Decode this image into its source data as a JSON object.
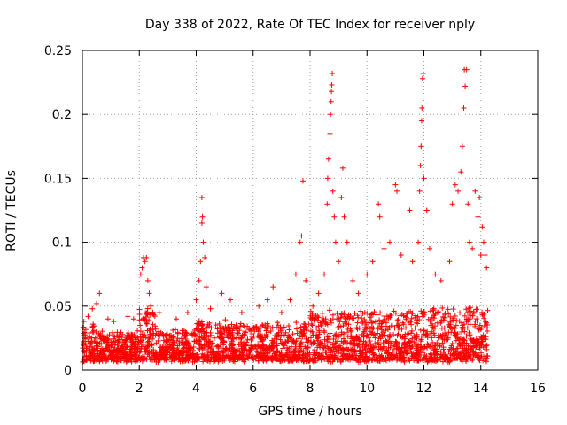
{
  "chart_data": {
    "type": "scatter",
    "title": "Day 338 of 2022, Rate Of TEC Index for receiver nply",
    "xlabel": "GPS time / hours",
    "ylabel": "ROTI / TECUs",
    "xlim": [
      0,
      16
    ],
    "ylim": [
      0,
      0.25
    ],
    "xticks": [
      0,
      2,
      4,
      6,
      8,
      10,
      12,
      14,
      16
    ],
    "yticks": [
      0,
      0.05,
      0.1,
      0.15,
      0.2,
      0.25
    ],
    "xtick_labels": [
      "0",
      "2",
      "4",
      "6",
      "8",
      "10",
      "12",
      "14",
      "16"
    ],
    "ytick_labels": [
      "0",
      "0.05",
      "0.1",
      "0.15",
      "0.2",
      "0.25"
    ],
    "grid": true,
    "marker": "+",
    "color": "#ff0000",
    "data_range_x": [
      0,
      14.25
    ],
    "series": [
      {
        "name": "ROTI",
        "points": [
          [
            0.05,
            0.038
          ],
          [
            0.2,
            0.042
          ],
          [
            0.35,
            0.048
          ],
          [
            0.5,
            0.052
          ],
          [
            0.6,
            0.06
          ],
          [
            0.9,
            0.04
          ],
          [
            1.1,
            0.038
          ],
          [
            1.6,
            0.042
          ],
          [
            1.8,
            0.04
          ],
          [
            2.05,
            0.075
          ],
          [
            2.1,
            0.08
          ],
          [
            2.15,
            0.088
          ],
          [
            2.2,
            0.085
          ],
          [
            2.25,
            0.088
          ],
          [
            2.3,
            0.07
          ],
          [
            2.35,
            0.06
          ],
          [
            2.4,
            0.05
          ],
          [
            2.7,
            0.045
          ],
          [
            3.3,
            0.04
          ],
          [
            3.7,
            0.045
          ],
          [
            4.0,
            0.055
          ],
          [
            4.1,
            0.07
          ],
          [
            4.15,
            0.085
          ],
          [
            4.2,
            0.115
          ],
          [
            4.22,
            0.12
          ],
          [
            4.2,
            0.135
          ],
          [
            4.25,
            0.1
          ],
          [
            4.3,
            0.088
          ],
          [
            4.35,
            0.065
          ],
          [
            4.5,
            0.048
          ],
          [
            4.9,
            0.06
          ],
          [
            5.2,
            0.055
          ],
          [
            5.6,
            0.045
          ],
          [
            6.2,
            0.05
          ],
          [
            6.5,
            0.055
          ],
          [
            6.7,
            0.065
          ],
          [
            7.0,
            0.045
          ],
          [
            7.3,
            0.055
          ],
          [
            7.5,
            0.075
          ],
          [
            7.65,
            0.1
          ],
          [
            7.7,
            0.105
          ],
          [
            7.75,
            0.148
          ],
          [
            7.85,
            0.07
          ],
          [
            8.1,
            0.05
          ],
          [
            8.3,
            0.06
          ],
          [
            8.5,
            0.075
          ],
          [
            8.6,
            0.13
          ],
          [
            8.62,
            0.15
          ],
          [
            8.65,
            0.165
          ],
          [
            8.7,
            0.185
          ],
          [
            8.72,
            0.2
          ],
          [
            8.74,
            0.21
          ],
          [
            8.75,
            0.218
          ],
          [
            8.76,
            0.223
          ],
          [
            8.78,
            0.232
          ],
          [
            8.8,
            0.14
          ],
          [
            8.85,
            0.12
          ],
          [
            8.9,
            0.1
          ],
          [
            9.0,
            0.085
          ],
          [
            9.1,
            0.135
          ],
          [
            9.15,
            0.158
          ],
          [
            9.2,
            0.12
          ],
          [
            9.3,
            0.1
          ],
          [
            9.5,
            0.07
          ],
          [
            9.7,
            0.06
          ],
          [
            10.0,
            0.075
          ],
          [
            10.2,
            0.085
          ],
          [
            10.4,
            0.13
          ],
          [
            10.45,
            0.12
          ],
          [
            10.6,
            0.095
          ],
          [
            10.8,
            0.1
          ],
          [
            11.0,
            0.145
          ],
          [
            11.05,
            0.14
          ],
          [
            11.2,
            0.09
          ],
          [
            11.5,
            0.125
          ],
          [
            11.6,
            0.085
          ],
          [
            11.8,
            0.1
          ],
          [
            11.85,
            0.14
          ],
          [
            11.88,
            0.16
          ],
          [
            11.9,
            0.175
          ],
          [
            11.92,
            0.195
          ],
          [
            11.93,
            0.205
          ],
          [
            11.95,
            0.228
          ],
          [
            11.97,
            0.232
          ],
          [
            12.0,
            0.15
          ],
          [
            12.1,
            0.125
          ],
          [
            12.2,
            0.095
          ],
          [
            12.4,
            0.075
          ],
          [
            12.6,
            0.07
          ],
          [
            12.9,
            0.085
          ],
          [
            13.0,
            0.13
          ],
          [
            13.1,
            0.145
          ],
          [
            13.2,
            0.14
          ],
          [
            13.3,
            0.155
          ],
          [
            13.35,
            0.175
          ],
          [
            13.4,
            0.205
          ],
          [
            13.42,
            0.235
          ],
          [
            13.45,
            0.222
          ],
          [
            13.5,
            0.235
          ],
          [
            13.55,
            0.13
          ],
          [
            13.6,
            0.1
          ],
          [
            13.7,
            0.095
          ],
          [
            13.8,
            0.14
          ],
          [
            13.9,
            0.12
          ],
          [
            13.95,
            0.135
          ],
          [
            14.0,
            0.09
          ],
          [
            14.05,
            0.112
          ],
          [
            14.1,
            0.1
          ],
          [
            14.15,
            0.09
          ],
          [
            14.2,
            0.08
          ]
        ]
      }
    ]
  }
}
